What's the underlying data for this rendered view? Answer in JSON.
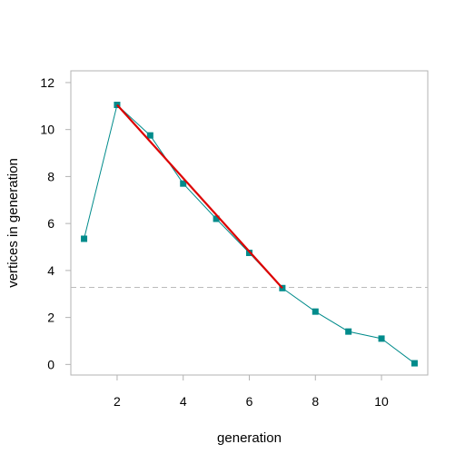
{
  "chart_data": {
    "type": "line",
    "title": "",
    "xlabel": "generation",
    "ylabel": "vertices in generation",
    "xlim": [
      0.6,
      11.4
    ],
    "ylim": [
      -0.45,
      12.5
    ],
    "xticks": [
      2,
      4,
      6,
      8,
      10
    ],
    "yticks": [
      0,
      2,
      4,
      6,
      8,
      10,
      12
    ],
    "grid": false,
    "legend": "none",
    "series": [
      {
        "marker": "square",
        "color": "#008B8B",
        "x": [
          1,
          2,
          3,
          4,
          5,
          6,
          7,
          8,
          9,
          10,
          11
        ],
        "y": [
          5.35,
          11.05,
          9.75,
          7.7,
          6.2,
          4.75,
          3.25,
          2.25,
          1.4,
          1.1,
          0.05
        ]
      }
    ],
    "fit_line": {
      "color": "#DD0000",
      "x": [
        2,
        7
      ],
      "y": [
        11.05,
        3.25
      ]
    },
    "reference_line": {
      "y": 3.28,
      "color": "#BBBBBB",
      "style": "dashed"
    }
  }
}
